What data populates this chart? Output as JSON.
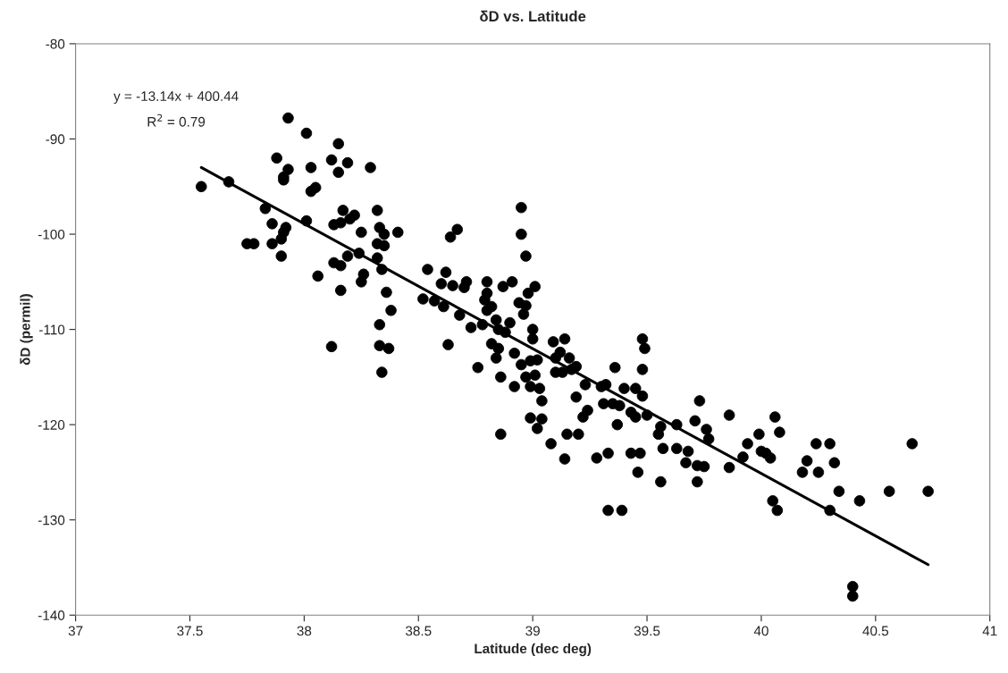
{
  "chart_data": {
    "type": "scatter",
    "title": "δD vs. Latitude",
    "xlabel": "Latitude (dec deg)",
    "ylabel": "δD (permil)",
    "xlim": [
      37,
      41
    ],
    "ylim": [
      -140,
      -80
    ],
    "xticks": [
      37,
      37.5,
      38,
      38.5,
      39,
      39.5,
      40,
      40.5,
      41
    ],
    "yticks": [
      -140,
      -130,
      -120,
      -110,
      -100,
      -90,
      -80
    ],
    "grid": false,
    "legend": false,
    "marker": "circle",
    "annotations": [
      "y = -13.14x + 400.44",
      "R$^{2}$ = 0.79"
    ],
    "series": [
      {
        "color": "#000000",
        "x": [
          37.55,
          37.67,
          37.75,
          37.78,
          37.83,
          37.86,
          37.86,
          37.88,
          37.9,
          37.9,
          37.91,
          37.91,
          37.92,
          37.93,
          37.93,
          37.91,
          38.01,
          38.01,
          38.03,
          38.03,
          38.05,
          38.06,
          38.12,
          38.12,
          38.13,
          38.13,
          38.15,
          38.15,
          38.16,
          38.16,
          38.16,
          38.17,
          38.19,
          38.19,
          38.2,
          38.22,
          38.24,
          38.25,
          38.26,
          38.25,
          38.29,
          38.32,
          38.32,
          38.32,
          38.33,
          38.33,
          38.33,
          38.34,
          38.34,
          38.35,
          38.35,
          38.36,
          38.37,
          38.38,
          38.41,
          38.52,
          38.54,
          38.57,
          38.6,
          38.61,
          38.62,
          38.63,
          38.64,
          38.65,
          38.67,
          38.68,
          38.7,
          38.71,
          38.73,
          38.76,
          38.78,
          38.79,
          38.8,
          38.8,
          38.8,
          38.82,
          38.82,
          38.84,
          38.84,
          38.85,
          38.85,
          38.86,
          38.86,
          38.87,
          38.88,
          38.9,
          38.91,
          38.92,
          38.92,
          38.94,
          38.95,
          38.95,
          38.95,
          38.96,
          38.97,
          38.97,
          38.97,
          38.98,
          38.99,
          38.99,
          38.99,
          39,
          39,
          39.01,
          39.01,
          39.02,
          39.02,
          39.03,
          39.04,
          39.04,
          39.08,
          39.09,
          39.1,
          39.1,
          39.12,
          39.13,
          39.14,
          39.14,
          39.15,
          39.16,
          39.17,
          39.19,
          39.19,
          39.2,
          39.22,
          39.23,
          39.24,
          39.28,
          39.3,
          39.31,
          39.32,
          39.33,
          39.33,
          39.35,
          39.36,
          39.37,
          39.38,
          39.39,
          39.4,
          39.43,
          39.43,
          39.45,
          39.45,
          39.46,
          39.47,
          39.48,
          39.48,
          39.48,
          39.49,
          39.5,
          39.55,
          39.56,
          39.56,
          39.57,
          39.63,
          39.63,
          39.67,
          39.68,
          39.71,
          39.72,
          39.72,
          39.73,
          39.75,
          39.76,
          39.77,
          39.86,
          39.86,
          39.92,
          39.94,
          39.99,
          40,
          40.02,
          40.04,
          40.05,
          40.06,
          40.07,
          40.08,
          40.18,
          40.2,
          40.24,
          40.25,
          40.3,
          40.3,
          40.32,
          40.34,
          40.4,
          40.4,
          40.43,
          40.56,
          40.66,
          40.73
        ],
        "values": [
          -95,
          -94.5,
          -101,
          -101,
          -97.3,
          -98.9,
          -101,
          -92,
          -100.5,
          -102.3,
          -94,
          -94.3,
          -99.3,
          -87.8,
          -93.2,
          -99.8,
          -89.4,
          -98.6,
          -95.5,
          -93,
          -95.1,
          -104.4,
          -92.2,
          -111.8,
          -99,
          -103,
          -90.5,
          -93.5,
          -98.8,
          -103.3,
          -105.9,
          -97.5,
          -92.5,
          -102.3,
          -98.4,
          -98,
          -102,
          -105,
          -104.2,
          -99.8,
          -93,
          -97.5,
          -101,
          -102.5,
          -99.3,
          -109.5,
          -111.7,
          -114.5,
          -103.7,
          -100,
          -101.2,
          -106.1,
          -112,
          -108,
          -99.8,
          -106.8,
          -103.7,
          -107,
          -105.2,
          -107.6,
          -104,
          -111.6,
          -100.3,
          -105.4,
          -99.5,
          -108.5,
          -105.6,
          -105,
          -109.8,
          -114,
          -109.5,
          -106.9,
          -105,
          -108,
          -106.2,
          -111.5,
          -107.6,
          -109,
          -113,
          -110,
          -112,
          -115,
          -121,
          -105.5,
          -110.3,
          -109.3,
          -105,
          -112.5,
          -116,
          -107.2,
          -97.2,
          -100,
          -113.7,
          -108.4,
          -102.3,
          -107.5,
          -115,
          -106.2,
          -113.3,
          -116,
          -119.3,
          -111,
          -110,
          -105.5,
          -114.8,
          -113.2,
          -120.4,
          -116.2,
          -117.5,
          -119.4,
          -122,
          -111.3,
          -113,
          -114.5,
          -112.4,
          -114.5,
          -111,
          -123.6,
          -121,
          -113,
          -114.2,
          -113.9,
          -117.1,
          -121,
          -119.2,
          -115.8,
          -118.5,
          -123.5,
          -116,
          -117.8,
          -115.8,
          -123,
          -129,
          -117.8,
          -114,
          -120,
          -118,
          -129,
          -116.2,
          -118.7,
          -123,
          -116.2,
          -119.2,
          -125,
          -123,
          -117,
          -111,
          -114.2,
          -112,
          -119,
          -121,
          -126,
          -120.2,
          -122.5,
          -120,
          -122.5,
          -124,
          -122.8,
          -119.6,
          -124.3,
          -126,
          -117.5,
          -124.4,
          -120.5,
          -121.5,
          -119,
          -124.5,
          -123.4,
          -122,
          -121,
          -122.8,
          -123,
          -123.5,
          -128,
          -119.2,
          -129,
          -120.8,
          -125,
          -123.8,
          -122,
          -125,
          -122,
          -129,
          -124,
          -127,
          -137,
          -138,
          -128,
          -127,
          -122,
          -127
        ]
      },
      {
        "type": "line",
        "color": "#000000",
        "marker": "none",
        "line_style": "solid",
        "x": [
          37.55,
          40.73
        ],
        "values": [
          -93.0,
          -134.7
        ]
      }
    ]
  }
}
